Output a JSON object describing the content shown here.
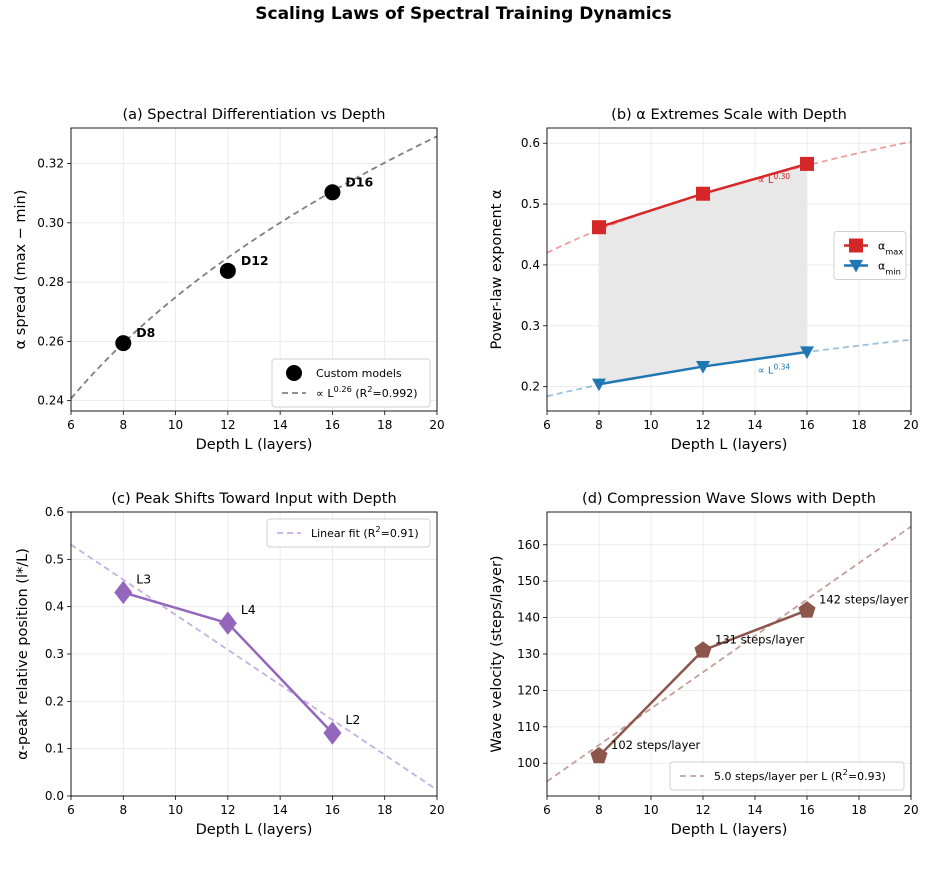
{
  "title": "Scaling Laws of Spectral Training Dynamics",
  "chart_data": [
    {
      "id": "a",
      "type": "scatter",
      "title": "(a) Spectral Differentiation vs Depth",
      "xlabel": "Depth L (layers)",
      "ylabel": "α spread (max − min)",
      "xlim": [
        6,
        20
      ],
      "ylim": [
        0.2365,
        0.332
      ],
      "xticks": [
        6,
        8,
        10,
        12,
        14,
        16,
        18,
        20
      ],
      "yticks": [
        0.24,
        0.26,
        0.28,
        0.3,
        0.32
      ],
      "ytick_labels": [
        "0.24",
        "0.26",
        "0.28",
        "0.30",
        "0.32"
      ],
      "grid": true,
      "legend_position": "lower-right",
      "series": [
        {
          "name": "Custom models",
          "style": "markers",
          "marker": "circle",
          "color": "#000000",
          "x": [
            8,
            12,
            16
          ],
          "y": [
            0.2594,
            0.2838,
            0.3103
          ],
          "point_labels": [
            "D8",
            "D12",
            "D16"
          ]
        },
        {
          "name": "∝ L^0.26 (R²=0.992)",
          "style": "dashed",
          "color": "#808080",
          "fit": {
            "kind": "power",
            "coef_at_x": 8,
            "value_at_x": 0.2594,
            "exponent": 0.26
          }
        }
      ],
      "legend": [
        {
          "marker": "circle",
          "color": "#000000",
          "label": "Custom models"
        },
        {
          "marker": "dash",
          "color": "#808080",
          "prefix": "∝ L",
          "sup": "0.26",
          "suffix": " (R",
          "sup2": "2",
          "suffix2": "=0.992)"
        }
      ]
    },
    {
      "id": "b",
      "type": "line",
      "title": "(b) α Extremes Scale with Depth",
      "xlabel": "Depth L (layers)",
      "ylabel": "Power-law exponent α",
      "xlim": [
        6,
        20
      ],
      "ylim": [
        0.16,
        0.625
      ],
      "xticks": [
        6,
        8,
        10,
        12,
        14,
        16,
        18,
        20
      ],
      "yticks": [
        0.2,
        0.3,
        0.4,
        0.5,
        0.6
      ],
      "ytick_labels": [
        "0.2",
        "0.3",
        "0.4",
        "0.5",
        "0.6"
      ],
      "grid": true,
      "legend_position": "center-right",
      "shaded_region_between_series": true,
      "series": [
        {
          "name": "α_max",
          "marker": "square",
          "color": "#d62728",
          "x": [
            8,
            12,
            16
          ],
          "y": [
            0.462,
            0.517,
            0.566
          ],
          "fit": {
            "kind": "power",
            "exponent": 0.3,
            "label": "∝ L^0.30"
          }
        },
        {
          "name": "α_min",
          "marker": "triangle-down",
          "color": "#1f77b4",
          "x": [
            8,
            12,
            16
          ],
          "y": [
            0.204,
            0.233,
            0.257
          ],
          "fit": {
            "kind": "power",
            "exponent": 0.34,
            "label": "∝ L^0.34"
          }
        }
      ],
      "annotations": [
        {
          "prefix": "∝ L",
          "sup": "0.30",
          "x": 14.1,
          "y": 0.535,
          "color": "#d62728"
        },
        {
          "prefix": "∝ L",
          "sup": "0.34",
          "x": 14.1,
          "y": 0.222,
          "color": "#1f77b4"
        }
      ],
      "legend": [
        {
          "marker": "square",
          "color": "#d62728",
          "prefix": "α",
          "sub": "max"
        },
        {
          "marker": "triangle-down",
          "color": "#1f77b4",
          "prefix": "α",
          "sub": "min"
        }
      ]
    },
    {
      "id": "c",
      "type": "line",
      "title": "(c) Peak Shifts Toward Input with Depth",
      "xlabel": "Depth L (layers)",
      "ylabel": "α-peak relative position (l*/L)",
      "xlim": [
        6,
        20
      ],
      "ylim": [
        0.0,
        0.6
      ],
      "xticks": [
        6,
        8,
        10,
        12,
        14,
        16,
        18,
        20
      ],
      "yticks": [
        0.0,
        0.1,
        0.2,
        0.3,
        0.4,
        0.5,
        0.6
      ],
      "ytick_labels": [
        "0.0",
        "0.1",
        "0.2",
        "0.3",
        "0.4",
        "0.5",
        "0.6"
      ],
      "grid": true,
      "legend_position": "upper-right",
      "series": [
        {
          "name": "α-peak position",
          "marker": "diamond",
          "color": "#9467bd",
          "x": [
            8,
            12,
            16
          ],
          "y": [
            0.43,
            0.365,
            0.133
          ],
          "point_labels": [
            "L3",
            "L4",
            "L2"
          ]
        },
        {
          "name": "Linear fit (R²=0.91)",
          "style": "dashed",
          "color": "#c5b0e0",
          "fit": {
            "kind": "linear",
            "slope": -0.037,
            "intercept": 0.753
          }
        }
      ],
      "legend": [
        {
          "marker": "dash",
          "color": "#c5b0e0",
          "prefix": "Linear fit (R",
          "sup": "2",
          "suffix": "=0.91)"
        }
      ]
    },
    {
      "id": "d",
      "type": "line",
      "title": "(d) Compression Wave Slows with Depth",
      "xlabel": "Depth L (layers)",
      "ylabel": "Wave velocity (steps/layer)",
      "xlim": [
        6,
        20
      ],
      "ylim": [
        91,
        169
      ],
      "xticks": [
        6,
        8,
        10,
        12,
        14,
        16,
        18,
        20
      ],
      "yticks": [
        100,
        110,
        120,
        130,
        140,
        150,
        160
      ],
      "ytick_labels": [
        "100",
        "110",
        "120",
        "130",
        "140",
        "150",
        "160"
      ],
      "grid": true,
      "legend_position": "lower-right",
      "series": [
        {
          "name": "Wave velocity",
          "marker": "pentagon",
          "color": "#8c564b",
          "x": [
            8,
            12,
            16
          ],
          "y": [
            102,
            131,
            142
          ],
          "point_labels": [
            "102 steps/layer",
            "131 steps/layer",
            "142 steps/layer"
          ]
        },
        {
          "name": "5.0 steps/layer per L (R²=0.93)",
          "style": "dashed",
          "color": "#c4a09a",
          "fit": {
            "kind": "linear",
            "slope": 5.0,
            "intercept": 65
          }
        }
      ],
      "legend": [
        {
          "marker": "dash",
          "color": "#c4a09a",
          "prefix": "5.0 steps/layer per L (R",
          "sup": "2",
          "suffix": "=0.93)"
        }
      ]
    }
  ]
}
